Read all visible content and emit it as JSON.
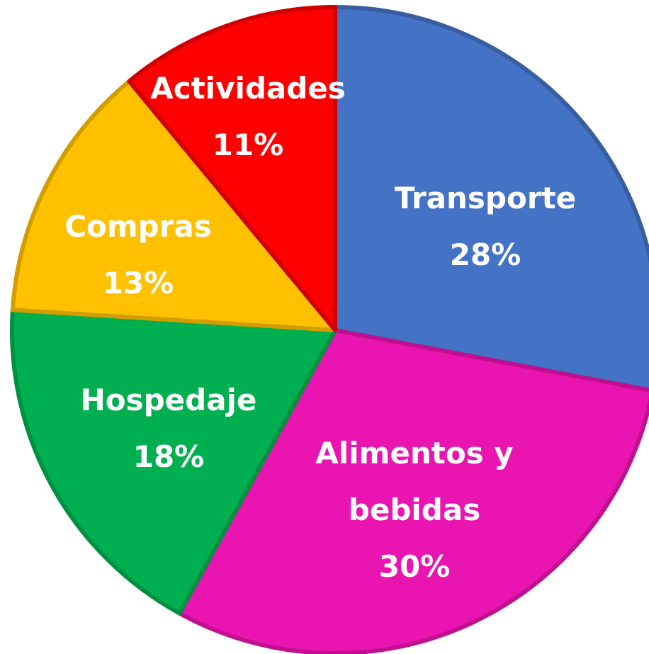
{
  "chart_data": {
    "type": "pie",
    "categories": [
      "Transporte",
      "Alimentos y bebidas",
      "Hospedaje",
      "Compras",
      "Actividades"
    ],
    "values": [
      28,
      30,
      18,
      13,
      11
    ],
    "value_labels": [
      "28%",
      "30%",
      "18%",
      "13%",
      "11%"
    ],
    "colors": [
      "#4472c4",
      "#ea14b0",
      "#00b050",
      "#ffc000",
      "#ff0000"
    ]
  }
}
